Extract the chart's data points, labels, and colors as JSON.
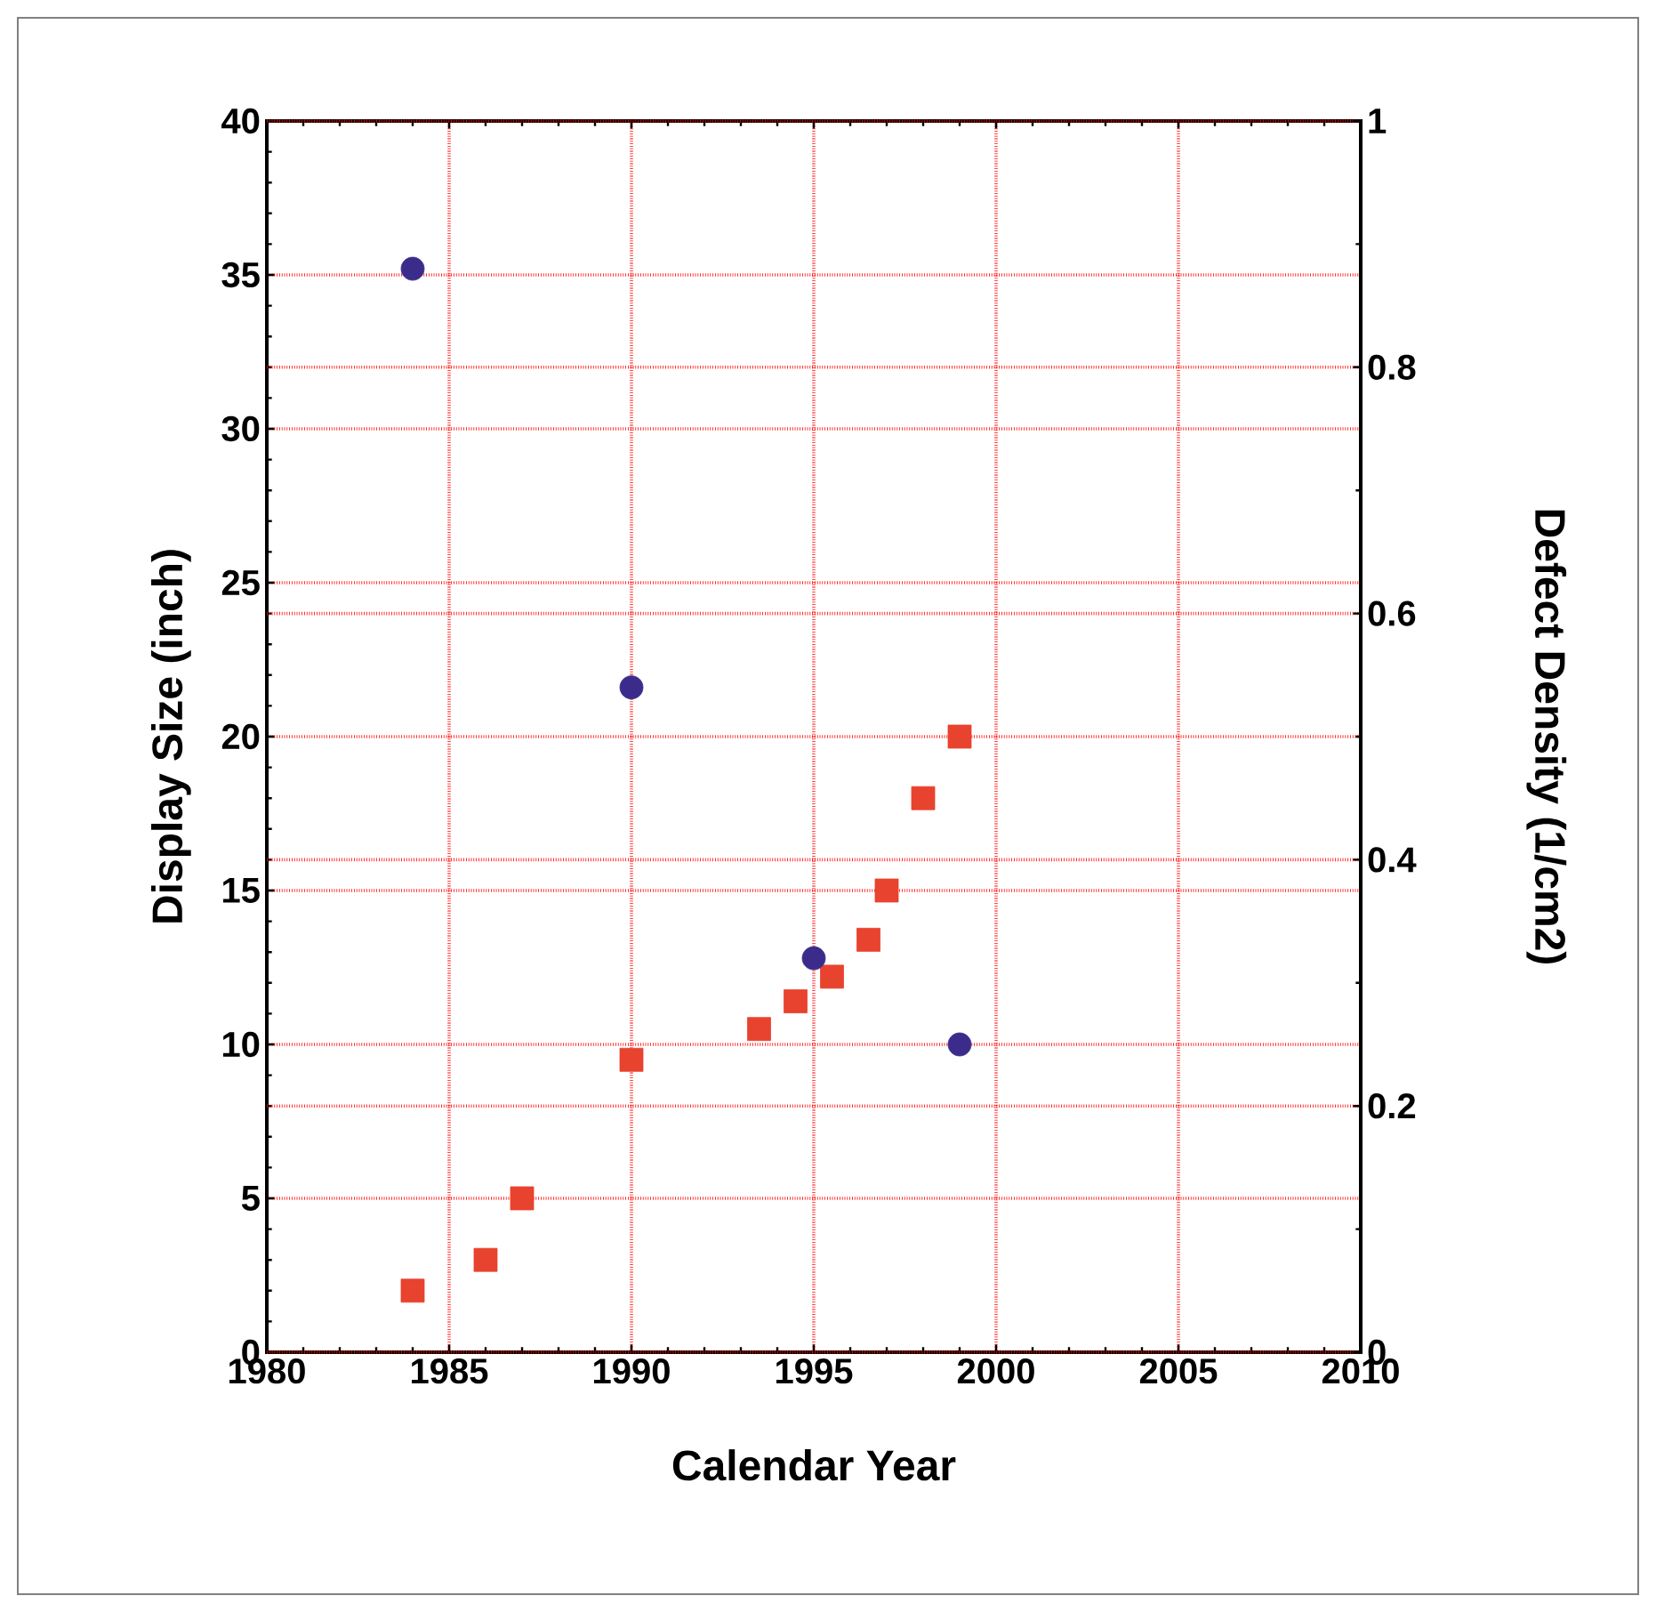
{
  "chart_data": {
    "type": "scatter",
    "xlabel": "Calendar Year",
    "ylabel": "Display Size (inch)",
    "y2label": "Defect Density (1/cm2)",
    "xlim": [
      1980,
      2010
    ],
    "xticks": [
      1980,
      1985,
      1990,
      1995,
      2000,
      2005,
      2010
    ],
    "ylim": [
      0,
      40
    ],
    "yticks": [
      0,
      5,
      10,
      15,
      20,
      25,
      30,
      35,
      40
    ],
    "y2lim": [
      0,
      1
    ],
    "y2ticks": [
      0,
      0.2,
      0.4,
      0.6,
      0.8,
      1
    ],
    "grid": true,
    "series": [
      {
        "color": "#e8432e",
        "marker": "square",
        "x": [
          1984,
          1986,
          1987,
          1990,
          1993.5,
          1994.5,
          1995.5,
          1996.5,
          1997,
          1998,
          1999
        ],
        "values": [
          2,
          3,
          5,
          9.5,
          10.5,
          11.4,
          12.2,
          13.4,
          15,
          18,
          20
        ]
      },
      {
        "color": "#3b2c8c",
        "marker": "circle",
        "axis": "y2",
        "x": [
          1984,
          1990,
          1995,
          1999
        ],
        "values": [
          0.88,
          0.54,
          0.32,
          0.25
        ]
      }
    ]
  }
}
